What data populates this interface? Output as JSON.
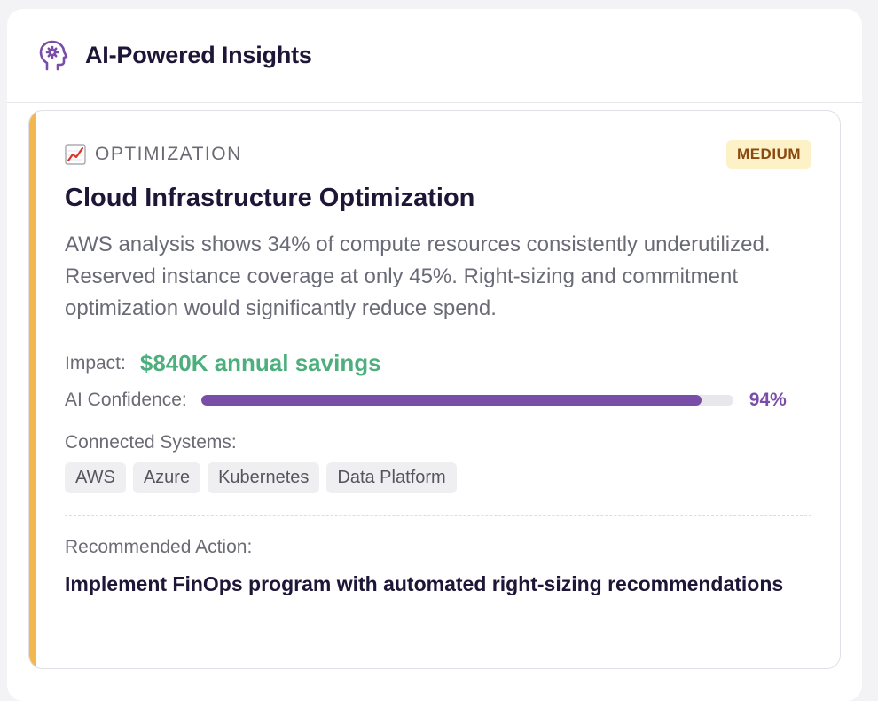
{
  "header": {
    "title": "AI-Powered Insights",
    "icon": "brain-gear-icon"
  },
  "insight": {
    "category": "OPTIMIZATION",
    "category_icon": "chart-increasing-icon",
    "priority": "MEDIUM",
    "title": "Cloud Infrastructure Optimization",
    "description": "AWS analysis shows 34% of compute resources consistently underutilized. Reserved instance coverage at only 45%. Right-sizing and commitment optimization would significantly reduce spend.",
    "impact_label": "Impact:",
    "impact_value": "$840K annual savings",
    "confidence_label": "AI Confidence:",
    "confidence_value": "94%",
    "confidence_fraction": 0.94,
    "systems_label": "Connected Systems:",
    "systems": [
      "AWS",
      "Azure",
      "Kubernetes",
      "Data Platform"
    ],
    "action_label": "Recommended Action:",
    "action_text": "Implement FinOps program with automated right-sizing recommendations"
  },
  "colors": {
    "accent_bar": "#f0b84f",
    "badge_bg": "#fdf1c8",
    "badge_text": "#8a4a0f",
    "impact_green": "#4caf7d",
    "confidence_purple": "#7a4ea8",
    "title_text": "#1e1637"
  }
}
